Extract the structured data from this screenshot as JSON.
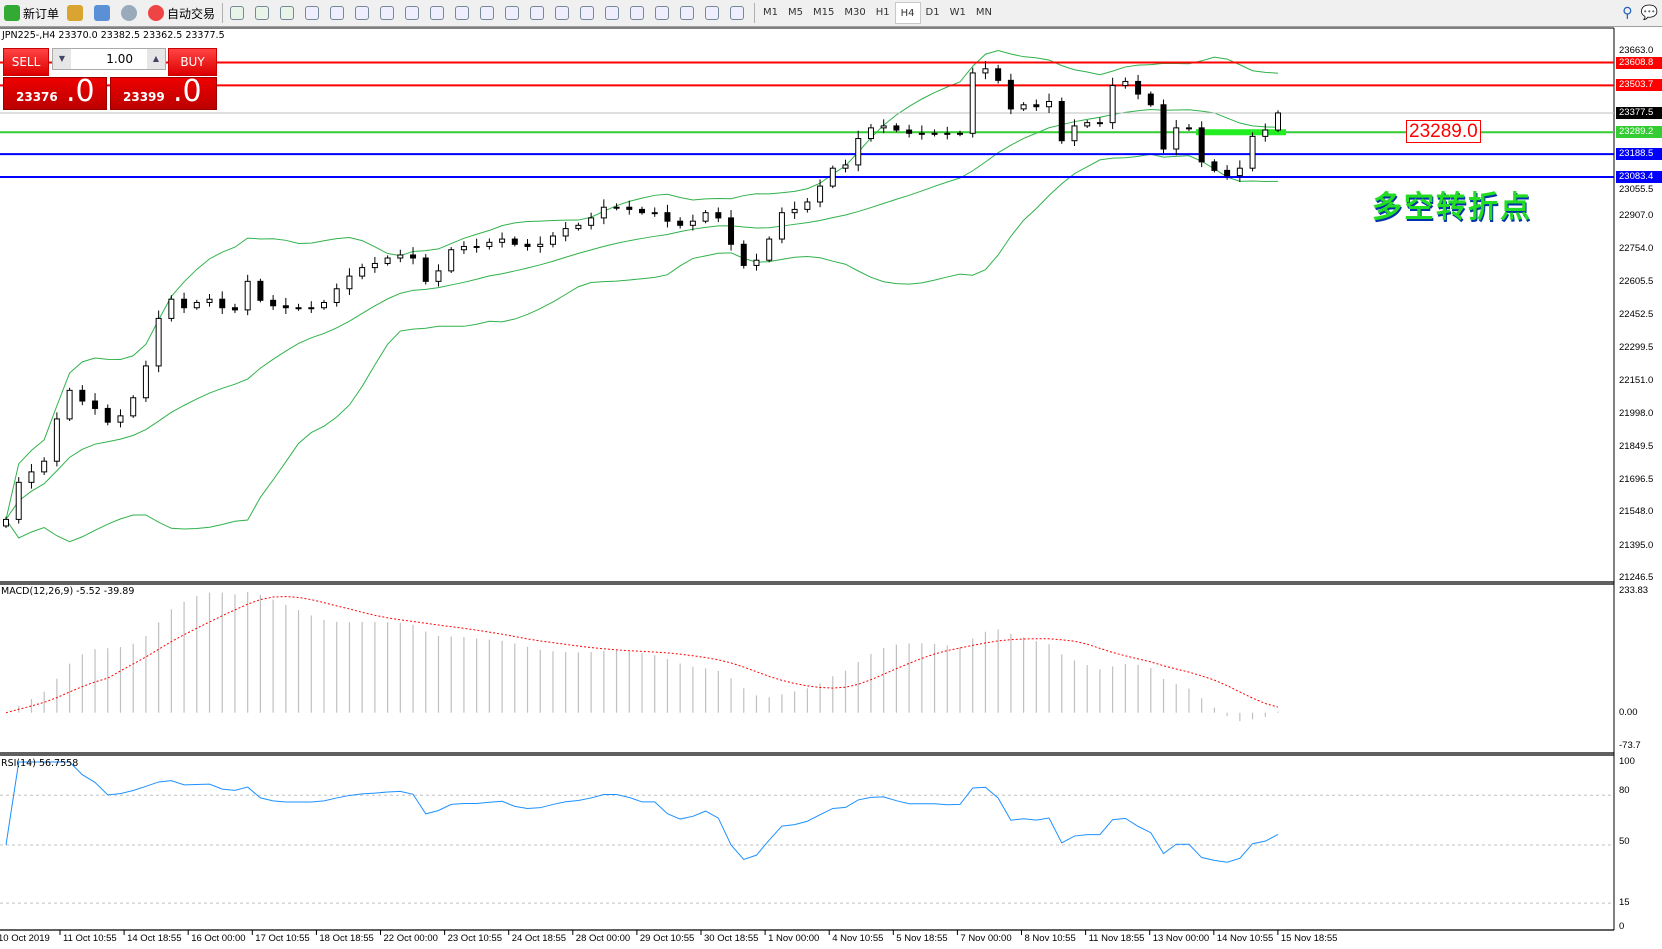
{
  "toolbar": {
    "new_order": "新订单",
    "auto_trading": "自动交易",
    "icons": [
      "new-order-icon",
      "metaeditor-icon",
      "navigator-icon",
      "signals-icon",
      "auto-trading-icon",
      "bar-chart-icon",
      "candlestick-icon",
      "line-chart-icon",
      "zoom-in-icon",
      "zoom-out-icon",
      "tile-windows-icon",
      "auto-scroll-icon",
      "chart-shift-icon",
      "indicators-icon",
      "periods-icon",
      "templates-icon",
      "cursor-icon",
      "crosshair-icon",
      "vertical-line-icon",
      "horizontal-line-icon",
      "trendline-icon",
      "equidistant-channel-icon",
      "fibonacci-icon",
      "text-icon",
      "text-label-icon",
      "arrows-icon"
    ],
    "timeframes": [
      "M1",
      "M5",
      "M15",
      "M30",
      "H1",
      "H4",
      "D1",
      "W1",
      "MN"
    ],
    "active_timeframe": "H4"
  },
  "chart_info": "JPN225-,H4  23370.0 23382.5 23362.5 23377.5",
  "one_click": {
    "sell": "SELL",
    "buy": "BUY",
    "volume": "1.00",
    "bid_main": "23376",
    "bid_big": ".0",
    "ask_main": "23399",
    "ask_big": ".0"
  },
  "annotation": {
    "text": "多空转折点",
    "price_label": "23289.0",
    "color": "#22dd22"
  },
  "chart_data": [
    {
      "type": "candlestick",
      "symbol": "JPN225-",
      "timeframe": "H4",
      "closes": [
        21513,
        21683,
        21731,
        21780,
        21974,
        22105,
        22056,
        22022,
        21959,
        21988,
        22071,
        22217,
        22435,
        22523,
        22484,
        22508,
        22523,
        22484,
        22474,
        22605,
        22518,
        22493,
        22484,
        22484,
        22484,
        22508,
        22571,
        22629,
        22668,
        22687,
        22712,
        22726,
        22712,
        22605,
        22653,
        22750,
        22765,
        22765,
        22784,
        22799,
        22775,
        22765,
        22775,
        22813,
        22847,
        22862,
        22896,
        22945,
        22945,
        22935,
        22920,
        22920,
        22881,
        22862,
        22881,
        22920,
        22896,
        22775,
        22678,
        22702,
        22799,
        22920,
        22935,
        22969,
        23042,
        23124,
        23139,
        23260,
        23309,
        23318,
        23299,
        23284,
        23284,
        23284,
        23280,
        23284,
        23561,
        23580,
        23527,
        23396,
        23415,
        23406,
        23430,
        23250,
        23318,
        23333,
        23333,
        23503,
        23522,
        23464,
        23415,
        23212,
        23309,
        23309,
        23153,
        23114,
        23090,
        23124,
        23270,
        23299,
        23377.5
      ],
      "ylim": [
        21246.5,
        23663.0
      ],
      "y_ticks": [
        "23663.0",
        "23055.5",
        "22907.0",
        "22754.0",
        "22605.5",
        "22452.5",
        "22299.5",
        "22151.0",
        "21998.0",
        "21849.5",
        "21696.5",
        "21548.0",
        "21395.0",
        "21246.5"
      ],
      "x_ticks": [
        "10 Oct 2019",
        "11 Oct 10:55",
        "14 Oct 18:55",
        "16 Oct 00:00",
        "17 Oct 10:55",
        "18 Oct 18:55",
        "22 Oct 00:00",
        "23 Oct 10:55",
        "24 Oct 18:55",
        "28 Oct 00:00",
        "29 Oct 10:55",
        "30 Oct 18:55",
        "1 Nov 00:00",
        "4 Nov 10:55",
        "5 Nov 18:55",
        "7 Nov 00:00",
        "8 Nov 10:55",
        "11 Nov 18:55",
        "13 Nov 00:00",
        "14 Nov 10:55",
        "15 Nov 18:55"
      ],
      "overlay": "Bollinger Bands",
      "overlay_color": "#2fb24a",
      "levels": [
        {
          "price": "23608.8",
          "color": "#ff0000"
        },
        {
          "price": "23503.7",
          "color": "#ff0000"
        },
        {
          "price": "23377.5",
          "color": "#c0c0c0",
          "tag_color": "#000000"
        },
        {
          "price": "23289.2",
          "color": "#33cc33"
        },
        {
          "price": "23188.5",
          "color": "#0000ff"
        },
        {
          "price": "23083.4",
          "color": "#0000ff"
        }
      ]
    },
    {
      "type": "bar",
      "indicator": "MACD(12,26,9) -5.52 -39.89",
      "y_ticks": [
        "233.83",
        "0.00",
        "-73.7"
      ],
      "histogram_color": "#c0c0c0",
      "signal_color": "#ff0000"
    },
    {
      "type": "line",
      "indicator": "RSI(14) 56.7558",
      "y_ticks": [
        "100",
        "80",
        "50",
        "15",
        "0"
      ],
      "levels": [
        80,
        50,
        15
      ],
      "color": "#1e90ff"
    }
  ]
}
